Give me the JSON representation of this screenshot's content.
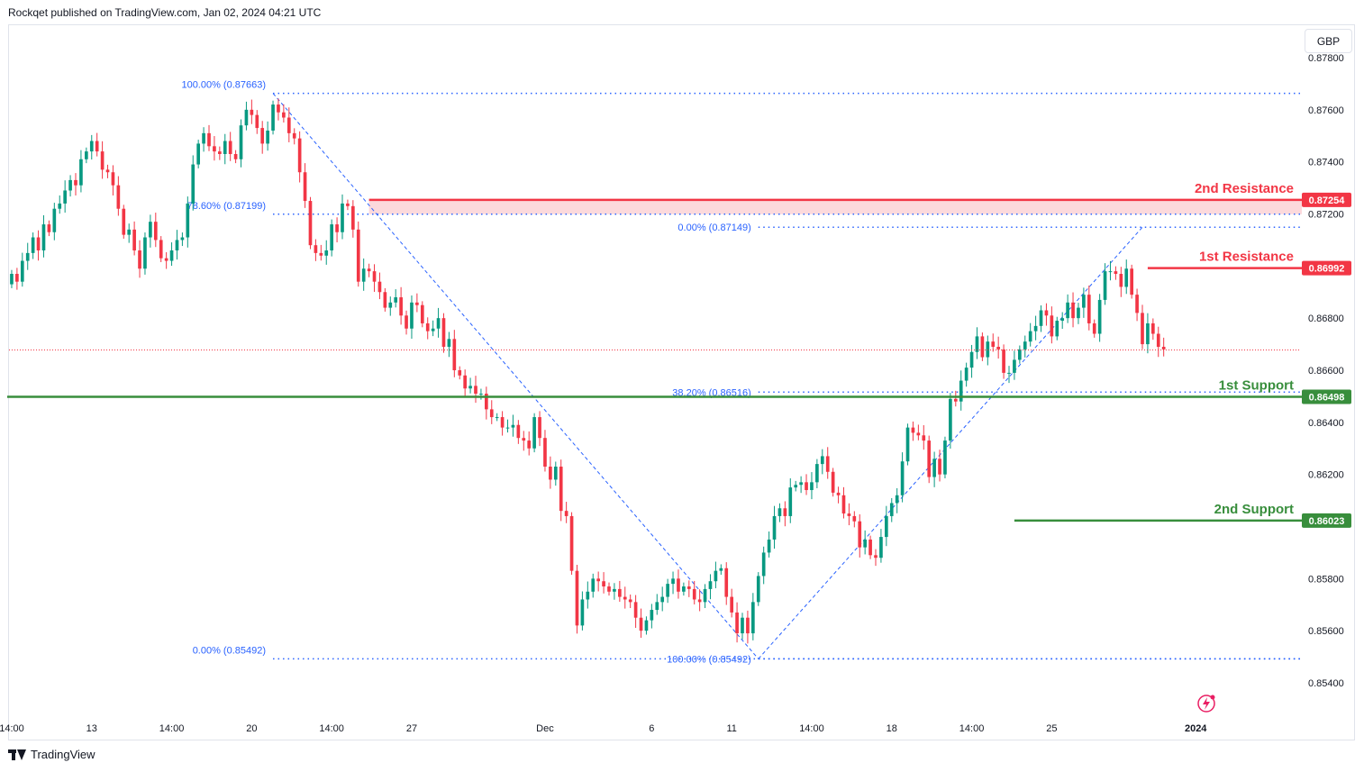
{
  "header": {
    "text": "Rockqet published on TradingView.com, Jan 02, 2024 04:21 UTC"
  },
  "currency_button": {
    "label": "GBP"
  },
  "footer": {
    "brand": "TradingView"
  },
  "icons": {
    "flash": "lightning-icon",
    "logo": "tradingview-logo-icon"
  },
  "colors": {
    "bull": "#089981",
    "bear": "#f23645",
    "fib": "#2962ff",
    "support": "#388e3c",
    "resistance": "#f23645",
    "zone": "#fcd9dc"
  },
  "chart_data": {
    "type": "candlestick",
    "symbol_currency": "GBP",
    "y_axis": {
      "min": 0.8532,
      "max": 0.8786,
      "ticks": [
        "0.87800",
        "0.87600",
        "0.87400",
        "0.87200",
        "0.86800",
        "0.86600",
        "0.86400",
        "0.86200",
        "0.85800",
        "0.85600",
        "0.85400"
      ]
    },
    "x_axis": {
      "ticks": [
        {
          "label": "14:00",
          "index": 0
        },
        {
          "label": "13",
          "index": 15
        },
        {
          "label": "14:00",
          "index": 30
        },
        {
          "label": "20",
          "index": 45
        },
        {
          "label": "14:00",
          "index": 60
        },
        {
          "label": "27",
          "index": 75
        },
        {
          "label": "Dec",
          "index": 100
        },
        {
          "label": "6",
          "index": 120
        },
        {
          "label": "11",
          "index": 135
        },
        {
          "label": "14:00",
          "index": 150
        },
        {
          "label": "18",
          "index": 165
        },
        {
          "label": "14:00",
          "index": 180
        },
        {
          "label": "25",
          "index": 195
        },
        {
          "label": "2024",
          "index": 222,
          "bold": true
        }
      ],
      "count": 225
    },
    "last_price": 0.86678,
    "levels": [
      {
        "name": "2nd Resistance",
        "value": "0.87254",
        "price": 0.87254,
        "kind": "resistance"
      },
      {
        "name": "1st Resistance",
        "value": "0.86992",
        "price": 0.86992,
        "kind": "resistance"
      },
      {
        "name": "1st Support",
        "value": "0.86498",
        "price": 0.86498,
        "kind": "support"
      },
      {
        "name": "2nd Support",
        "value": "0.86023",
        "price": 0.86023,
        "kind": "support"
      }
    ],
    "fib_left": [
      {
        "label": "100.00% (0.87663)",
        "price": 0.87663
      },
      {
        "label": "78.60% (0.87199)",
        "price": 0.87199
      },
      {
        "label": "0.00% (0.85492)",
        "price": 0.85492
      }
    ],
    "fib_right": [
      {
        "label": "0.00% (0.87149)",
        "price": 0.87149
      },
      {
        "label": "38.20% (0.86516)",
        "price": 0.86516
      },
      {
        "label": "100.00% (0.85492)",
        "price": 0.85492
      }
    ],
    "swing_points": [
      {
        "index": 49,
        "price": 0.87663
      },
      {
        "index": 140,
        "price": 0.85492
      },
      {
        "index": 212,
        "price": 0.87149
      }
    ],
    "candles_close": [
      0.8697,
      0.8694,
      0.8702,
      0.8705,
      0.8711,
      0.8706,
      0.8716,
      0.8713,
      0.8722,
      0.8724,
      0.8729,
      0.8733,
      0.8731,
      0.8741,
      0.8744,
      0.8748,
      0.8744,
      0.8737,
      0.8736,
      0.8731,
      0.8722,
      0.8712,
      0.8714,
      0.8706,
      0.8699,
      0.8711,
      0.8717,
      0.871,
      0.8703,
      0.8702,
      0.8706,
      0.871,
      0.8711,
      0.8724,
      0.8739,
      0.8747,
      0.8751,
      0.8746,
      0.8744,
      0.8743,
      0.8748,
      0.8743,
      0.8741,
      0.8754,
      0.876,
      0.8758,
      0.8753,
      0.8747,
      0.8752,
      0.8762,
      0.8759,
      0.8757,
      0.8751,
      0.8749,
      0.8736,
      0.8725,
      0.8708,
      0.8705,
      0.8704,
      0.8706,
      0.8716,
      0.8713,
      0.8724,
      0.8723,
      0.8714,
      0.8694,
      0.8699,
      0.8698,
      0.8694,
      0.869,
      0.8684,
      0.8686,
      0.8688,
      0.8681,
      0.8676,
      0.8686,
      0.8685,
      0.8678,
      0.8675,
      0.8676,
      0.868,
      0.8669,
      0.8672,
      0.866,
      0.8658,
      0.8653,
      0.8654,
      0.8651,
      0.8651,
      0.8645,
      0.8642,
      0.8642,
      0.8638,
      0.8638,
      0.8639,
      0.8634,
      0.8633,
      0.863,
      0.8642,
      0.8634,
      0.8623,
      0.8618,
      0.8623,
      0.8606,
      0.8604,
      0.8583,
      0.8562,
      0.8572,
      0.8575,
      0.858,
      0.8579,
      0.8577,
      0.8575,
      0.8576,
      0.8573,
      0.8572,
      0.8571,
      0.8565,
      0.856,
      0.8564,
      0.8568,
      0.8571,
      0.8573,
      0.8578,
      0.858,
      0.8575,
      0.8577,
      0.8576,
      0.8572,
      0.8571,
      0.8576,
      0.8579,
      0.8583,
      0.8584,
      0.8573,
      0.8567,
      0.8559,
      0.8565,
      0.8559,
      0.8571,
      0.8581,
      0.859,
      0.8595,
      0.8604,
      0.8607,
      0.8604,
      0.8615,
      0.8616,
      0.8617,
      0.8614,
      0.8617,
      0.8624,
      0.8627,
      0.8621,
      0.8613,
      0.8612,
      0.8605,
      0.8604,
      0.8602,
      0.8592,
      0.8595,
      0.8589,
      0.8588,
      0.8596,
      0.8604,
      0.8609,
      0.8612,
      0.8625,
      0.8638,
      0.8636,
      0.8635,
      0.8633,
      0.8619,
      0.8626,
      0.862,
      0.8633,
      0.8649,
      0.8648,
      0.8656,
      0.8661,
      0.8667,
      0.8673,
      0.8665,
      0.8671,
      0.8669,
      0.8668,
      0.8659,
      0.8659,
      0.8664,
      0.8668,
      0.8671,
      0.8675,
      0.8677,
      0.8683,
      0.8681,
      0.8673,
      0.8679,
      0.868,
      0.8686,
      0.868,
      0.8684,
      0.8689,
      0.8678,
      0.8674,
      0.8687,
      0.8698,
      0.8698,
      0.8697,
      0.8692,
      0.8699,
      0.8689,
      0.8682,
      0.867,
      0.8678,
      0.8674,
      0.8669,
      0.8668
    ]
  }
}
